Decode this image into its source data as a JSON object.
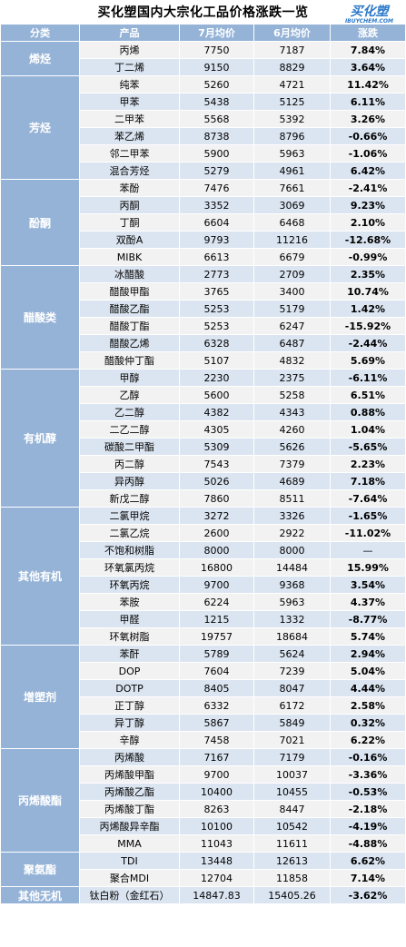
{
  "title": "买化塑国内大宗化工品价格涨跌一览",
  "logo": {
    "cn": "买化塑",
    "en": "IBUYCHEM.COM"
  },
  "headers": [
    "分类",
    "产品",
    "7月均价",
    "6月均价",
    "涨跌"
  ],
  "colors": {
    "header_bg": "#95b3d7",
    "row_a": "#f2f2f2",
    "row_b": "#dbe5f1",
    "up": "#ff0000",
    "down": "#00a651"
  },
  "groups": [
    {
      "name": "烯烃",
      "rows": [
        {
          "product": "丙烯",
          "jul": "7750",
          "jun": "7187",
          "change": "7.84%"
        },
        {
          "product": "丁二烯",
          "jul": "9150",
          "jun": "8829",
          "change": "3.64%"
        }
      ]
    },
    {
      "name": "芳烃",
      "rows": [
        {
          "product": "纯苯",
          "jul": "5260",
          "jun": "4721",
          "change": "11.42%"
        },
        {
          "product": "甲苯",
          "jul": "5438",
          "jun": "5125",
          "change": "6.11%"
        },
        {
          "product": "二甲苯",
          "jul": "5568",
          "jun": "5392",
          "change": "3.26%"
        },
        {
          "product": "苯乙烯",
          "jul": "8738",
          "jun": "8796",
          "change": "-0.66%"
        },
        {
          "product": "邻二甲苯",
          "jul": "5900",
          "jun": "5963",
          "change": "-1.06%"
        },
        {
          "product": "混合芳烃",
          "jul": "5279",
          "jun": "4961",
          "change": "6.42%"
        }
      ]
    },
    {
      "name": "酚酮",
      "rows": [
        {
          "product": "苯酚",
          "jul": "7476",
          "jun": "7661",
          "change": "-2.41%"
        },
        {
          "product": "丙酮",
          "jul": "3352",
          "jun": "3069",
          "change": "9.23%"
        },
        {
          "product": "丁酮",
          "jul": "6604",
          "jun": "6468",
          "change": "2.10%"
        },
        {
          "product": "双酚A",
          "jul": "9793",
          "jun": "11216",
          "change": "-12.68%"
        },
        {
          "product": "MIBK",
          "jul": "6613",
          "jun": "6679",
          "change": "-0.99%"
        }
      ]
    },
    {
      "name": "醋酸类",
      "rows": [
        {
          "product": "冰醋酸",
          "jul": "2773",
          "jun": "2709",
          "change": "2.35%"
        },
        {
          "product": "醋酸甲酯",
          "jul": "3765",
          "jun": "3400",
          "change": "10.74%"
        },
        {
          "product": "醋酸乙酯",
          "jul": "5253",
          "jun": "5179",
          "change": "1.42%"
        },
        {
          "product": "醋酸丁酯",
          "jul": "5253",
          "jun": "6247",
          "change": "-15.92%"
        },
        {
          "product": "醋酸乙烯",
          "jul": "6328",
          "jun": "6487",
          "change": "-2.44%"
        },
        {
          "product": "醋酸仲丁酯",
          "jul": "5107",
          "jun": "4832",
          "change": "5.69%"
        }
      ]
    },
    {
      "name": "有机醇",
      "rows": [
        {
          "product": "甲醇",
          "jul": "2230",
          "jun": "2375",
          "change": "-6.11%"
        },
        {
          "product": "乙醇",
          "jul": "5600",
          "jun": "5258",
          "change": "6.51%"
        },
        {
          "product": "乙二醇",
          "jul": "4382",
          "jun": "4343",
          "change": "0.88%"
        },
        {
          "product": "二乙二醇",
          "jul": "4305",
          "jun": "4260",
          "change": "1.04%"
        },
        {
          "product": "碳酸二甲酯",
          "jul": "5309",
          "jun": "5626",
          "change": "-5.65%"
        },
        {
          "product": "丙二醇",
          "jul": "7543",
          "jun": "7379",
          "change": "2.23%"
        },
        {
          "product": "异丙醇",
          "jul": "5026",
          "jun": "4689",
          "change": "7.18%"
        },
        {
          "product": "新戊二醇",
          "jul": "7860",
          "jun": "8511",
          "change": "-7.64%"
        }
      ]
    },
    {
      "name": "其他有机",
      "rows": [
        {
          "product": "二氯甲烷",
          "jul": "3272",
          "jun": "3326",
          "change": "-1.65%"
        },
        {
          "product": "二氯乙烷",
          "jul": "2600",
          "jun": "2922",
          "change": "-11.02%"
        },
        {
          "product": "不饱和树脂",
          "jul": "8000",
          "jun": "8000",
          "change": "—"
        },
        {
          "product": "环氧氯丙烷",
          "jul": "16800",
          "jun": "14484",
          "change": "15.99%"
        },
        {
          "product": "环氧丙烷",
          "jul": "9700",
          "jun": "9368",
          "change": "3.54%"
        },
        {
          "product": "苯胺",
          "jul": "6224",
          "jun": "5963",
          "change": "4.37%"
        },
        {
          "product": "甲醛",
          "jul": "1215",
          "jun": "1332",
          "change": "-8.77%"
        },
        {
          "product": "环氧树脂",
          "jul": "19757",
          "jun": "18684",
          "change": "5.74%"
        }
      ]
    },
    {
      "name": "增塑剂",
      "rows": [
        {
          "product": "苯酐",
          "jul": "5789",
          "jun": "5624",
          "change": "2.94%"
        },
        {
          "product": "DOP",
          "jul": "7604",
          "jun": "7239",
          "change": "5.04%"
        },
        {
          "product": "DOTP",
          "jul": "8405",
          "jun": "8047",
          "change": "4.44%"
        },
        {
          "product": "正丁醇",
          "jul": "6332",
          "jun": "6172",
          "change": "2.58%"
        },
        {
          "product": "异丁醇",
          "jul": "5867",
          "jun": "5849",
          "change": "0.32%"
        },
        {
          "product": "辛醇",
          "jul": "7458",
          "jun": "7021",
          "change": "6.22%"
        }
      ]
    },
    {
      "name": "丙烯酸酯",
      "rows": [
        {
          "product": "丙烯酸",
          "jul": "7167",
          "jun": "7179",
          "change": "-0.16%"
        },
        {
          "product": "丙烯酸甲酯",
          "jul": "9700",
          "jun": "10037",
          "change": "-3.36%"
        },
        {
          "product": "丙烯酸乙酯",
          "jul": "10400",
          "jun": "10455",
          "change": "-0.53%"
        },
        {
          "product": "丙烯酸丁酯",
          "jul": "8263",
          "jun": "8447",
          "change": "-2.18%"
        },
        {
          "product": "丙烯酸异辛酯",
          "jul": "10100",
          "jun": "10542",
          "change": "-4.19%"
        },
        {
          "product": "MMA",
          "jul": "11043",
          "jun": "11611",
          "change": "-4.88%"
        }
      ]
    },
    {
      "name": "聚氨酯",
      "rows": [
        {
          "product": "TDI",
          "jul": "13448",
          "jun": "12613",
          "change": "6.62%"
        },
        {
          "product": "聚合MDI",
          "jul": "12704",
          "jun": "11858",
          "change": "7.14%"
        }
      ]
    },
    {
      "name": "其他无机",
      "rows": [
        {
          "product": "钛白粉（金红石）",
          "jul": "14847.83",
          "jun": "15405.26",
          "change": "-3.62%"
        }
      ]
    }
  ]
}
